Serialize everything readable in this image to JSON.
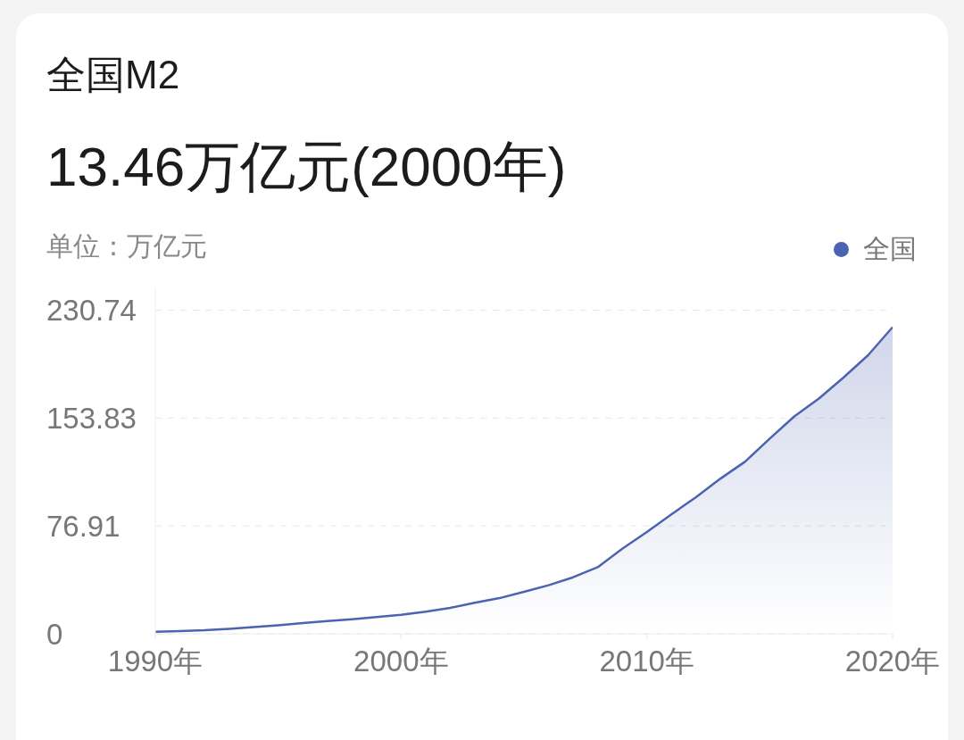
{
  "chart_data": {
    "type": "area",
    "title": "全国M2",
    "subtitle": "13.46万亿元(2000年)",
    "ylabel": "单位：万亿元",
    "x": [
      1990,
      1991,
      1992,
      1993,
      1994,
      1995,
      1996,
      1997,
      1998,
      1999,
      2000,
      2001,
      2002,
      2003,
      2004,
      2005,
      2006,
      2007,
      2008,
      2009,
      2010,
      2011,
      2012,
      2013,
      2014,
      2015,
      2016,
      2017,
      2018,
      2019,
      2020
    ],
    "series": [
      {
        "name": "全国",
        "color": "#4b63b0",
        "values": [
          1.5,
          1.9,
          2.5,
          3.5,
          4.7,
          6.1,
          7.6,
          9.1,
          10.4,
          12.0,
          13.46,
          15.8,
          18.5,
          22.1,
          25.4,
          29.9,
          34.6,
          40.3,
          47.5,
          60.6,
          72.6,
          85.2,
          97.4,
          110.7,
          122.8,
          139.2,
          155.0,
          167.7,
          182.7,
          198.6,
          218.7
        ]
      }
    ],
    "xlim": [
      1990,
      2020
    ],
    "xticks": [
      {
        "value": 1990,
        "label": "1990年"
      },
      {
        "value": 2000,
        "label": "2000年"
      },
      {
        "value": 2010,
        "label": "2010年"
      },
      {
        "value": 2020,
        "label": "2020年"
      }
    ],
    "ylim": [
      0,
      247
    ],
    "yticks": [
      0,
      76.91,
      153.83,
      230.74
    ],
    "grid": "y",
    "legend": "top right"
  }
}
